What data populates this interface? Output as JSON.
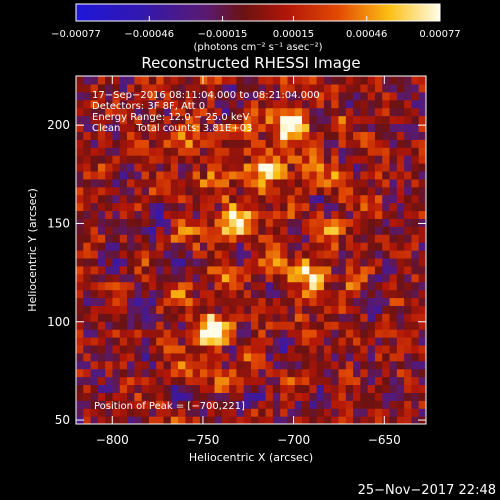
{
  "chart_data": {
    "type": "heatmap",
    "title": "Reconstructed RHESSI Image",
    "xlabel": "Heliocentric X (arcsec)",
    "ylabel": "Heliocentric Y (arcsec)",
    "x_ticks": [
      -800,
      -750,
      -700,
      -650
    ],
    "x_tick_labels": [
      "−800",
      "−750",
      "−700",
      "−650"
    ],
    "y_ticks": [
      50,
      100,
      150,
      200
    ],
    "y_tick_labels": [
      "50",
      "100",
      "150",
      "200"
    ],
    "xlim": [
      -820,
      -627
    ],
    "ylim": [
      48,
      225
    ],
    "colorbar": {
      "min": -0.00077,
      "max": 0.00077,
      "tick_values": [
        -0.00077,
        -0.00046,
        -0.00015,
        0.00015,
        0.00046,
        0.00077
      ],
      "tick_labels": [
        "−0.00077",
        "−0.00046",
        "−0.00015",
        "0.00015",
        "0.00046",
        "0.00077"
      ],
      "units_label": "(photons cm⁻² s⁻¹ asec⁻²)"
    },
    "annotations": [
      "17−Sep−2016 08:11:04.000 to 08:21:04.000",
      "Detectors: 3F 8F, Att 0",
      "Energy Range: 12.0 − 25.0 keV",
      "Clean     Total counts: 3.81E+03"
    ],
    "peak_label": "Position of Peak = [−700,221]",
    "peak": {
      "x": -700,
      "y": 221
    },
    "footer_timestamp": "25−Nov−2017 22:48",
    "grid_resolution": [
      48,
      44
    ],
    "sources": [
      {
        "x": -745,
        "y": 95,
        "amp": 0.00077,
        "sigma": 9
      },
      {
        "x": -735,
        "y": 150,
        "amp": 0.00055,
        "sigma": 10
      },
      {
        "x": -700,
        "y": 200,
        "amp": 0.0006,
        "sigma": 9
      },
      {
        "x": -690,
        "y": 125,
        "amp": 0.00042,
        "sigma": 12
      },
      {
        "x": -715,
        "y": 180,
        "amp": 0.00045,
        "sigma": 11
      },
      {
        "x": -760,
        "y": 190,
        "amp": 0.00035,
        "sigma": 10
      },
      {
        "x": -675,
        "y": 170,
        "amp": 0.00038,
        "sigma": 9
      }
    ]
  }
}
